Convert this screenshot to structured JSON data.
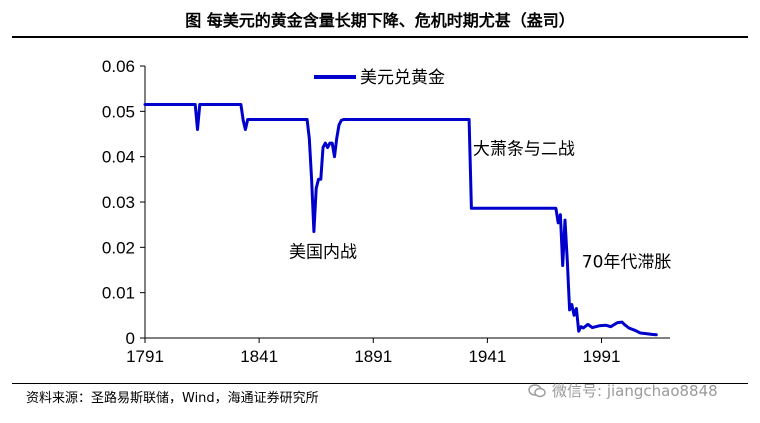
{
  "title": "图  每美元的黄金含量长期下降、危机时期尤甚（盎司）",
  "source": "资料来源：圣路易斯联储，Wind，海通证券研究所",
  "watermark": "微信号: jiangchao8848",
  "chart_data": {
    "type": "line",
    "title": "",
    "xlabel": "",
    "ylabel": "",
    "xlim": [
      1791,
      2021
    ],
    "ylim": [
      0,
      0.06
    ],
    "xticks": [
      1791,
      1841,
      1891,
      1941,
      1991
    ],
    "yticks": [
      0,
      0.01,
      0.02,
      0.03,
      0.04,
      0.05,
      0.06
    ],
    "ytick_labels": [
      "0",
      "0.01",
      "0.02",
      "0.03",
      "0.04",
      "0.05",
      "0.06"
    ],
    "grid": false,
    "legend": "top-center",
    "line_color": "#0000cc",
    "series": [
      {
        "name": "美元兑黄金",
        "x": [
          1791,
          1813,
          1814,
          1815,
          1816,
          1833,
          1834,
          1835,
          1836,
          1837,
          1862,
          1863,
          1864,
          1865,
          1866,
          1867,
          1868,
          1869,
          1870,
          1871,
          1872,
          1873,
          1874,
          1875,
          1876,
          1877,
          1878,
          1879,
          1933,
          1934,
          1935,
          1971,
          1972,
          1973,
          1974,
          1975,
          1976,
          1977,
          1978,
          1979,
          1980,
          1981,
          1982,
          1983,
          1985,
          1987,
          1990,
          1993,
          1995,
          1998,
          2000,
          2001,
          2003,
          2006,
          2008,
          2010,
          2013,
          2015
        ],
        "y": [
          0.0515,
          0.0515,
          0.046,
          0.0515,
          0.0515,
          0.0515,
          0.048,
          0.046,
          0.0482,
          0.0482,
          0.0482,
          0.044,
          0.035,
          0.0235,
          0.033,
          0.035,
          0.035,
          0.042,
          0.043,
          0.042,
          0.043,
          0.043,
          0.04,
          0.044,
          0.047,
          0.048,
          0.0482,
          0.0482,
          0.0482,
          0.0286,
          0.0286,
          0.0286,
          0.0254,
          0.0272,
          0.016,
          0.026,
          0.017,
          0.0062,
          0.0074,
          0.005,
          0.0065,
          0.0015,
          0.0025,
          0.0022,
          0.003,
          0.0023,
          0.0027,
          0.0028,
          0.0025,
          0.0034,
          0.0035,
          0.003,
          0.0022,
          0.0016,
          0.0011,
          0.001,
          0.0008,
          0.0007
        ]
      }
    ],
    "annotations": [
      {
        "text": "美国内战",
        "x": 1869,
        "y": 0.0178
      },
      {
        "text": "大萧条与二战",
        "x": 1957,
        "y": 0.0405
      },
      {
        "text": "70年代滞胀",
        "x": 2002,
        "y": 0.0155
      }
    ]
  }
}
